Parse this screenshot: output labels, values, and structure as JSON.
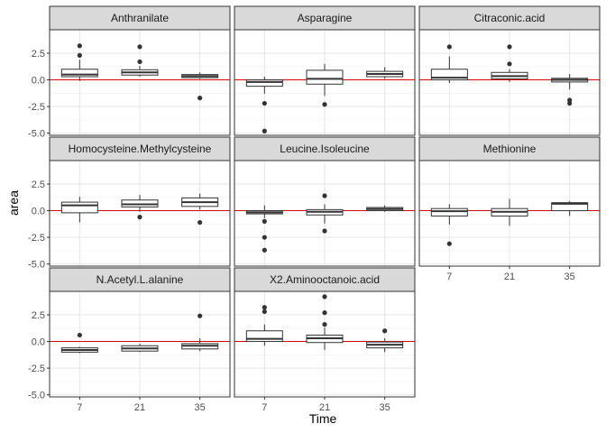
{
  "chart_data": {
    "type": "boxplot",
    "facet": "faceted boxplot grid (3 columns)",
    "xlabel": "Time",
    "ylabel": "area",
    "x_categories": [
      "7",
      "21",
      "35"
    ],
    "y_ticks": [
      -5.0,
      -2.5,
      0.0,
      2.5
    ],
    "y_tick_labels": [
      "-5.0",
      "-2.5",
      "0.0",
      "2.5"
    ],
    "ylim": [
      -5.2,
      4.7
    ],
    "reference_line": 0,
    "reference_line_color": "#dd0000",
    "panel_background": "#ffffff",
    "strip_background": "#d9d9d9",
    "grid": true,
    "panels": [
      {
        "title": "Anthranilate",
        "boxes": [
          {
            "x": "7",
            "lower_whisker": -0.1,
            "q1": 0.3,
            "median": 0.5,
            "q3": 1.0,
            "upper_whisker": 1.9,
            "outliers": [
              2.3,
              3.2
            ]
          },
          {
            "x": "21",
            "lower_whisker": 0.3,
            "q1": 0.45,
            "median": 0.7,
            "q3": 0.95,
            "upper_whisker": 1.3,
            "outliers": [
              1.7,
              3.1
            ]
          },
          {
            "x": "35",
            "lower_whisker": 0.1,
            "q1": 0.2,
            "median": 0.35,
            "q3": 0.5,
            "upper_whisker": 0.7,
            "outliers": [
              -1.7
            ]
          }
        ]
      },
      {
        "title": "Asparagine",
        "boxes": [
          {
            "x": "7",
            "lower_whisker": -1.3,
            "q1": -0.6,
            "median": -0.2,
            "q3": 0.0,
            "upper_whisker": 0.3,
            "outliers": [
              -2.2,
              -4.8
            ]
          },
          {
            "x": "21",
            "lower_whisker": -1.5,
            "q1": -0.4,
            "median": 0.1,
            "q3": 0.9,
            "upper_whisker": 1.5,
            "outliers": [
              -2.3
            ]
          },
          {
            "x": "35",
            "lower_whisker": 0.1,
            "q1": 0.3,
            "median": 0.55,
            "q3": 0.8,
            "upper_whisker": 1.2,
            "outliers": []
          }
        ]
      },
      {
        "title": "Citraconic.acid",
        "boxes": [
          {
            "x": "7",
            "lower_whisker": -0.3,
            "q1": 0.0,
            "median": 0.2,
            "q3": 1.0,
            "upper_whisker": 2.2,
            "outliers": [
              3.1
            ]
          },
          {
            "x": "21",
            "lower_whisker": -0.2,
            "q1": 0.1,
            "median": 0.35,
            "q3": 0.7,
            "upper_whisker": 1.0,
            "outliers": [
              1.5,
              3.1
            ]
          },
          {
            "x": "35",
            "lower_whisker": -0.9,
            "q1": -0.2,
            "median": 0.0,
            "q3": 0.15,
            "upper_whisker": 0.55,
            "outliers": [
              -1.9,
              -2.2
            ]
          }
        ]
      },
      {
        "title": "Homocysteine.Methylcysteine",
        "boxes": [
          {
            "x": "7",
            "lower_whisker": -1.1,
            "q1": -0.2,
            "median": 0.5,
            "q3": 0.8,
            "upper_whisker": 1.3,
            "outliers": []
          },
          {
            "x": "21",
            "lower_whisker": -0.1,
            "q1": 0.35,
            "median": 0.6,
            "q3": 1.0,
            "upper_whisker": 1.5,
            "outliers": [
              -0.6
            ]
          },
          {
            "x": "35",
            "lower_whisker": 0.1,
            "q1": 0.4,
            "median": 0.8,
            "q3": 1.2,
            "upper_whisker": 1.6,
            "outliers": [
              -1.1
            ]
          }
        ]
      },
      {
        "title": "Leucine.Isoleucine",
        "boxes": [
          {
            "x": "7",
            "lower_whisker": -0.7,
            "q1": -0.3,
            "median": -0.15,
            "q3": 0.0,
            "upper_whisker": 0.5,
            "outliers": [
              -1.0,
              -2.5,
              -3.7
            ]
          },
          {
            "x": "21",
            "lower_whisker": -1.2,
            "q1": -0.4,
            "median": -0.1,
            "q3": 0.1,
            "upper_whisker": 0.6,
            "outliers": [
              1.4,
              -1.9
            ]
          },
          {
            "x": "35",
            "lower_whisker": -0.1,
            "q1": 0.0,
            "median": 0.15,
            "q3": 0.3,
            "upper_whisker": 0.5,
            "outliers": []
          }
        ]
      },
      {
        "title": "Methionine",
        "boxes": [
          {
            "x": "7",
            "lower_whisker": -1.3,
            "q1": -0.5,
            "median": -0.05,
            "q3": 0.2,
            "upper_whisker": 0.6,
            "outliers": [
              -3.1
            ]
          },
          {
            "x": "21",
            "lower_whisker": -1.4,
            "q1": -0.5,
            "median": -0.1,
            "q3": 0.2,
            "upper_whisker": 1.1,
            "outliers": []
          },
          {
            "x": "35",
            "lower_whisker": -0.5,
            "q1": 0.0,
            "median": 0.65,
            "q3": 0.75,
            "upper_whisker": 0.9,
            "outliers": []
          }
        ]
      },
      {
        "title": "N.Acetyl.L.alanine",
        "boxes": [
          {
            "x": "7",
            "lower_whisker": -1.1,
            "q1": -1.0,
            "median": -0.8,
            "q3": -0.6,
            "upper_whisker": -0.5,
            "outliers": [
              0.6
            ]
          },
          {
            "x": "21",
            "lower_whisker": -1.0,
            "q1": -0.9,
            "median": -0.65,
            "q3": -0.4,
            "upper_whisker": -0.2,
            "outliers": []
          },
          {
            "x": "35",
            "lower_whisker": -0.9,
            "q1": -0.7,
            "median": -0.4,
            "q3": -0.2,
            "upper_whisker": 0.3,
            "outliers": [
              2.4
            ]
          }
        ]
      },
      {
        "title": "X2.Aminooctanoic.acid",
        "boxes": [
          {
            "x": "7",
            "lower_whisker": -0.4,
            "q1": 0.0,
            "median": 0.25,
            "q3": 1.0,
            "upper_whisker": 1.6,
            "outliers": [
              2.8,
              3.2
            ]
          },
          {
            "x": "21",
            "lower_whisker": -0.8,
            "q1": -0.1,
            "median": 0.3,
            "q3": 0.6,
            "upper_whisker": 1.3,
            "outliers": [
              1.6,
              2.7,
              4.2
            ]
          },
          {
            "x": "35",
            "lower_whisker": -1.0,
            "q1": -0.6,
            "median": -0.3,
            "q3": -0.05,
            "upper_whisker": 0.3,
            "outliers": [
              1.0
            ]
          }
        ]
      }
    ]
  }
}
